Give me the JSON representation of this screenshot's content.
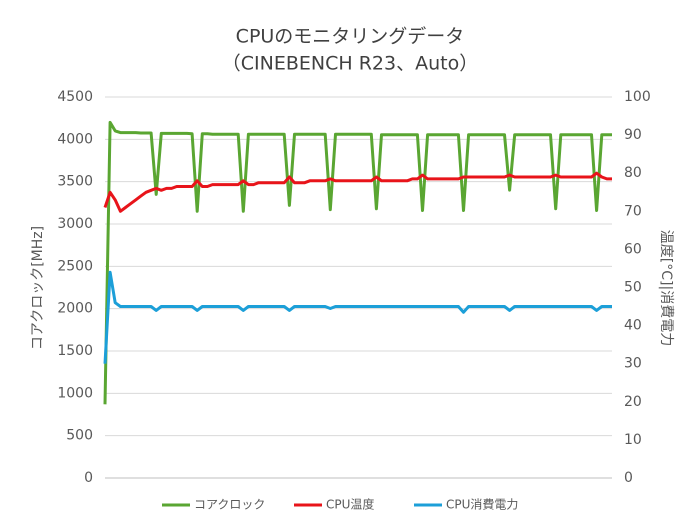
{
  "chart_data": {
    "type": "line",
    "title": "CPUのモニタリングデータ",
    "subtitle": "（CINEBENCH R23、Auto）",
    "y_label": "コアクロック[MHz]",
    "y2_label": "温度[°C]|消費電力",
    "ylim": [
      0,
      4500
    ],
    "yticks": [
      0,
      500,
      1000,
      1500,
      2000,
      2500,
      3000,
      3500,
      4000,
      4500
    ],
    "y2lim": [
      0,
      100
    ],
    "y2ticks": [
      0,
      10,
      20,
      30,
      40,
      50,
      60,
      70,
      80,
      90,
      100
    ],
    "grid": true,
    "legend": "bottom",
    "categories": [
      null,
      null,
      null,
      null,
      null,
      null,
      null,
      null,
      null,
      null,
      null,
      null,
      null,
      null,
      null,
      null,
      null,
      null,
      null,
      null,
      null,
      null,
      null,
      null,
      null,
      null,
      null,
      null,
      null,
      null,
      null,
      null,
      null,
      null,
      null,
      null,
      null,
      null,
      null,
      null,
      null,
      null,
      null,
      null,
      null,
      null,
      null,
      null,
      null,
      null,
      null,
      null,
      null,
      null,
      null,
      null,
      null,
      null,
      null,
      null,
      null,
      null,
      null,
      null,
      null,
      null,
      null,
      null,
      null,
      null,
      null,
      null,
      null,
      null,
      null,
      null,
      null,
      null,
      null,
      null,
      null,
      null,
      null,
      null,
      null,
      null,
      null,
      null,
      null,
      null,
      null,
      null,
      null,
      null,
      null,
      null,
      null,
      null,
      null,
      null
    ],
    "series": [
      {
        "name": "コアクロック",
        "color": "#5aa632",
        "values": [
          870,
          4200,
          4100,
          4080,
          4080,
          4080,
          4080,
          4075,
          4075,
          4075,
          3350,
          4070,
          4070,
          4070,
          4070,
          4070,
          4070,
          4065,
          3150,
          4065,
          4065,
          4060,
          4060,
          4060,
          4060,
          4060,
          4060,
          3150,
          4060,
          4060,
          4060,
          4060,
          4060,
          4060,
          4060,
          4060,
          3220,
          4060,
          4060,
          4060,
          4060,
          4060,
          4060,
          4060,
          3170,
          4060,
          4060,
          4060,
          4060,
          4060,
          4060,
          4060,
          4060,
          3180,
          4055,
          4055,
          4055,
          4055,
          4055,
          4055,
          4055,
          4055,
          3160,
          4055,
          4055,
          4055,
          4055,
          4055,
          4055,
          4055,
          3160,
          4055,
          4055,
          4055,
          4055,
          4055,
          4055,
          4055,
          4055,
          3400,
          4055,
          4055,
          4055,
          4055,
          4055,
          4055,
          4055,
          4055,
          3180,
          4055,
          4055,
          4055,
          4055,
          4055,
          4055,
          4055,
          3160,
          4055,
          4055,
          4055
        ]
      },
      {
        "name": "CPU温度",
        "color": "#e8141a",
        "axis": "y2",
        "values": [
          71,
          75,
          73,
          70,
          71,
          72,
          73,
          74,
          75,
          75.5,
          76,
          75.5,
          76,
          76,
          76.5,
          76.5,
          76.5,
          76.5,
          78,
          76.5,
          76.5,
          77,
          77,
          77,
          77,
          77,
          77,
          78,
          77,
          77,
          77.5,
          77.5,
          77.5,
          77.5,
          77.5,
          77.5,
          79,
          77.5,
          77.5,
          77.5,
          78,
          78,
          78,
          78,
          78.5,
          78,
          78,
          78,
          78,
          78,
          78,
          78,
          78,
          79,
          78,
          78,
          78,
          78,
          78,
          78,
          78.5,
          78.5,
          79.5,
          78.5,
          78.5,
          78.5,
          78.5,
          78.5,
          78.5,
          78.5,
          79,
          79,
          79,
          79,
          79,
          79,
          79,
          79,
          79,
          79.5,
          79,
          79,
          79,
          79,
          79,
          79,
          79,
          79,
          79.5,
          79,
          79,
          79,
          79,
          79,
          79,
          79,
          80,
          79,
          78.5,
          78.5
        ]
      },
      {
        "name": "CPU消費電力",
        "color": "#1c9fd8",
        "axis": "y2",
        "values": [
          30,
          54,
          46,
          45,
          45,
          45,
          45,
          45,
          45,
          45,
          44,
          45,
          45,
          45,
          45,
          45,
          45,
          45,
          44,
          45,
          45,
          45,
          45,
          45,
          45,
          45,
          45,
          44,
          45,
          45,
          45,
          45,
          45,
          45,
          45,
          45,
          44,
          45,
          45,
          45,
          45,
          45,
          45,
          45,
          44.5,
          45,
          45,
          45,
          45,
          45,
          45,
          45,
          45,
          45,
          45,
          45,
          45,
          45,
          45,
          45,
          45,
          45,
          45,
          45,
          45,
          45,
          45,
          45,
          45,
          45,
          43.5,
          45,
          45,
          45,
          45,
          45,
          45,
          45,
          45,
          44,
          45,
          45,
          45,
          45,
          45,
          45,
          45,
          45,
          45,
          45,
          45,
          45,
          45,
          45,
          45,
          45,
          44,
          45,
          45,
          45
        ]
      }
    ]
  }
}
